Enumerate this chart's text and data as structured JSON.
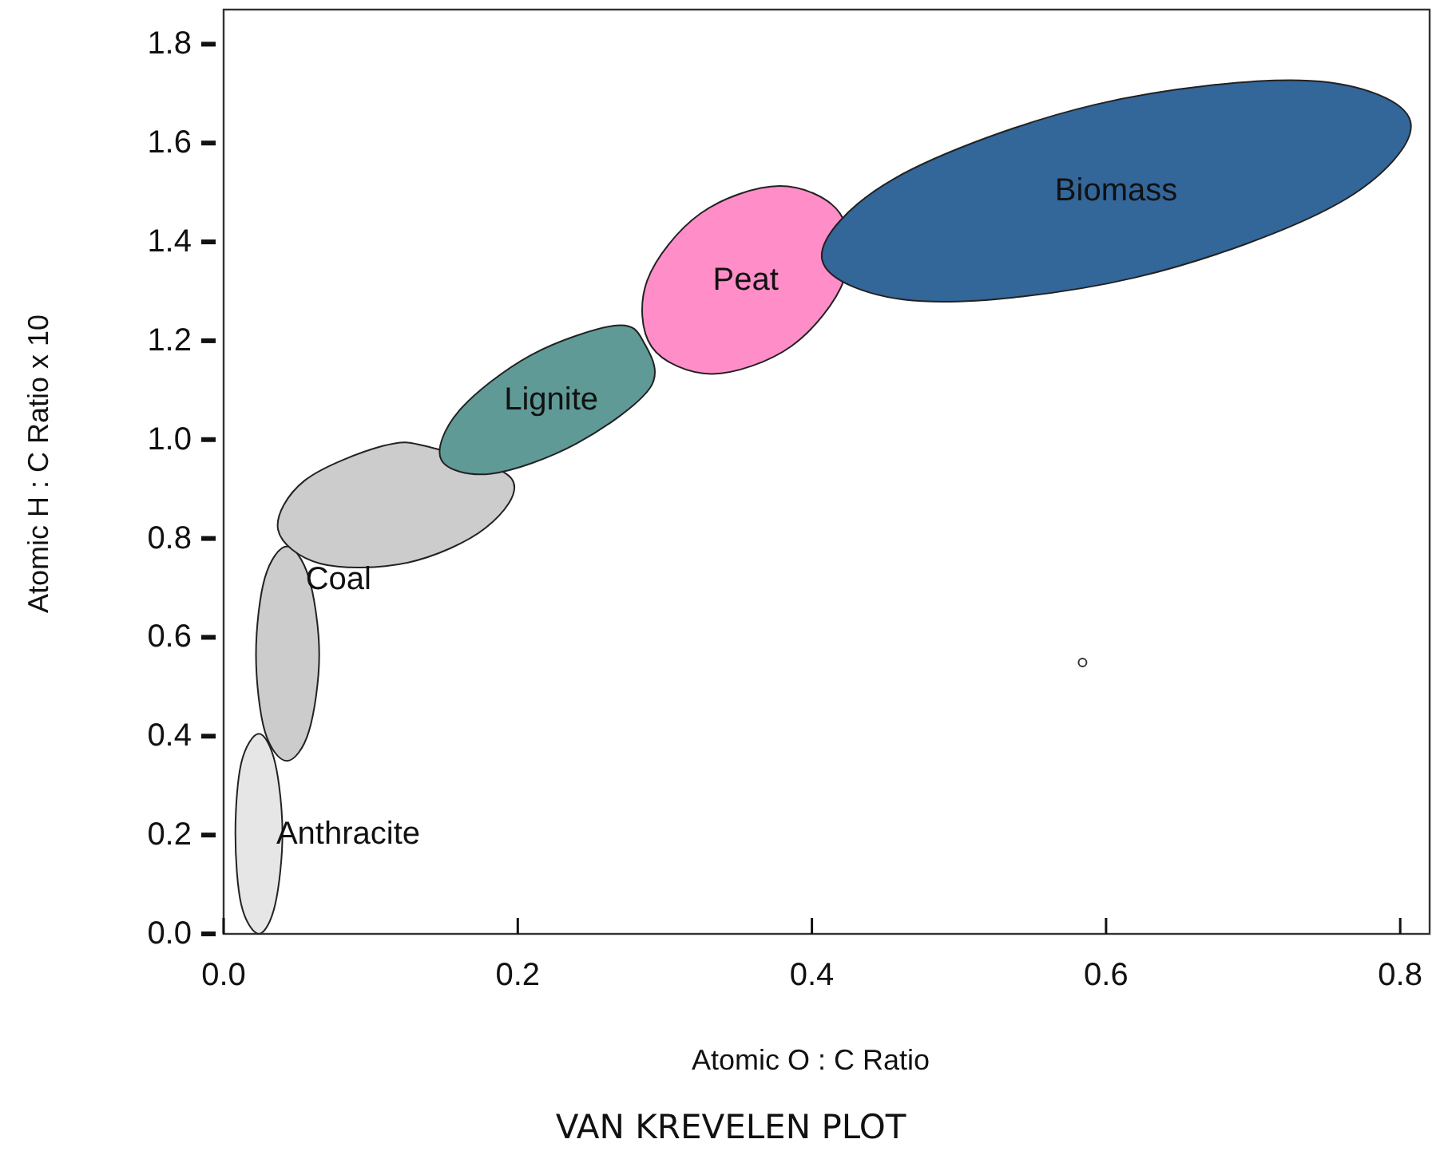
{
  "chart_data": {
    "type": "area",
    "title": "VAN KREVELEN PLOT",
    "xlabel": "Atomic O : C Ratio",
    "ylabel": "Atomic H : C Ratio x 10",
    "xlim": [
      0,
      0.82
    ],
    "ylim": [
      0,
      1.87
    ],
    "xticks": [
      {
        "value": 0,
        "label": "0.0"
      },
      {
        "value": 0.2,
        "label": "0.2"
      },
      {
        "value": 0.4,
        "label": "0.4"
      },
      {
        "value": 0.6,
        "label": "0.6"
      },
      {
        "value": 0.8,
        "label": "0.8"
      }
    ],
    "yticks": [
      {
        "value": 0,
        "label": "0.0"
      },
      {
        "value": 0.2,
        "label": "0.2"
      },
      {
        "value": 0.4,
        "label": "0.4"
      },
      {
        "value": 0.6,
        "label": "0.6"
      },
      {
        "value": 0.8,
        "label": "0.8"
      },
      {
        "value": 1.0,
        "label": "1.0"
      },
      {
        "value": 1.2,
        "label": "1.2"
      },
      {
        "value": 1.4,
        "label": "1.4"
      },
      {
        "value": 1.6,
        "label": "1.6"
      },
      {
        "value": 1.8,
        "label": "1.8"
      }
    ],
    "grid": false,
    "series": [
      {
        "name": "Anthracite",
        "color": "#e6e6e6",
        "x": [
          0.04,
          0.035,
          0.024,
          0.012,
          0.008,
          0.012,
          0.024,
          0.035
        ],
        "values": [
          0.203,
          0.059,
          0.0,
          0.059,
          0.203,
          0.346,
          0.405,
          0.346
        ]
      },
      {
        "name": "Coal",
        "color": "#cccccc",
        "x": [
          0.065,
          0.058,
          0.043,
          0.028,
          0.022,
          0.028,
          0.043,
          0.058,
          null,
          0.196,
          0.178,
          0.125,
          0.066,
          0.037,
          0.055,
          0.108,
          0.14
        ],
        "values": [
          0.565,
          0.41,
          0.35,
          0.41,
          0.565,
          0.72,
          0.784,
          0.72,
          null,
          0.92,
          0.821,
          0.751,
          0.749,
          0.818,
          0.917,
          0.987,
          0.985
        ]
      },
      {
        "name": "Lignite",
        "color": "#5f9a96",
        "x": [
          0.286,
          0.29,
          0.24,
          0.182,
          0.148,
          0.16,
          0.209,
          0.267
        ],
        "values": [
          1.195,
          1.105,
          0.992,
          0.931,
          0.959,
          1.058,
          1.171,
          1.231
        ]
      },
      {
        "name": "Peat",
        "color": "#ff8ec8",
        "x": [
          0.419,
          0.422,
          0.386,
          0.332,
          0.291,
          0.288,
          0.324,
          0.378
        ],
        "values": [
          1.458,
          1.324,
          1.189,
          1.133,
          1.188,
          1.322,
          1.457,
          1.513
        ]
      },
      {
        "name": "Biomass",
        "color": "#336699",
        "x": [
          0.807,
          0.758,
          0.62,
          0.475,
          0.407,
          0.456,
          0.593,
          0.739
        ],
        "values": [
          1.643,
          1.478,
          1.328,
          1.28,
          1.363,
          1.528,
          1.678,
          1.726
        ]
      },
      {
        "type": "scatter",
        "color": "#333333",
        "marker": "circle",
        "x": [
          0.584
        ],
        "values": [
          0.549
        ]
      }
    ]
  }
}
